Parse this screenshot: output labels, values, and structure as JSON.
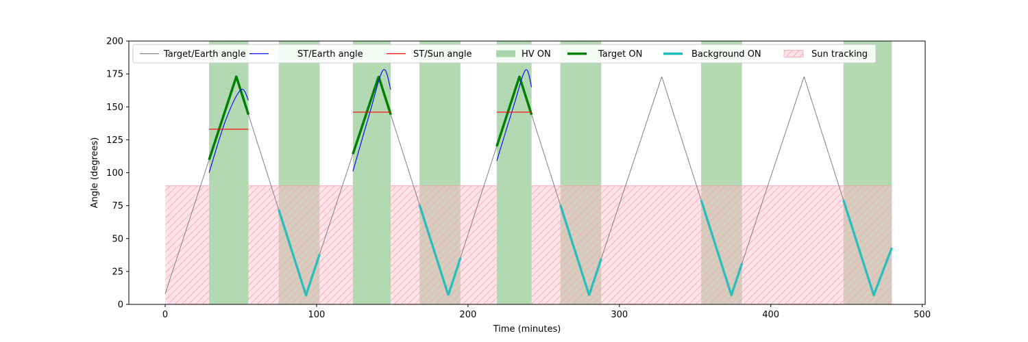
{
  "chart_data": {
    "type": "line",
    "xlabel": "Time (minutes)",
    "ylabel": "Angle (degrees)",
    "xlim": [
      -24,
      502
    ],
    "ylim": [
      0,
      200
    ],
    "x_ticks": [
      0,
      100,
      200,
      300,
      400,
      500
    ],
    "y_ticks": [
      0,
      25,
      50,
      75,
      100,
      125,
      150,
      175,
      200
    ],
    "grid": false,
    "legend_position": "top",
    "colors": {
      "target_earth": "#808080",
      "st_earth": "#0000ff",
      "st_sun": "#ff0000",
      "hv_on": "#008000",
      "target_on": "#008000",
      "background_on": "#17bfbf",
      "sun_tracking": "#ffc0cb"
    },
    "legend": [
      {
        "key": "target_earth",
        "label": "Target/Earth angle",
        "kind": "line"
      },
      {
        "key": "st_earth",
        "label": "ST/Earth angle",
        "kind": "line"
      },
      {
        "key": "st_sun",
        "label": "ST/Sun angle",
        "kind": "line"
      },
      {
        "key": "hv_on",
        "label": "HV ON",
        "kind": "patch"
      },
      {
        "key": "target_on",
        "label": "Target ON",
        "kind": "thick"
      },
      {
        "key": "background_on",
        "label": "Background ON",
        "kind": "thick"
      },
      {
        "key": "sun_tracking",
        "label": "Sun tracking",
        "kind": "hatch"
      }
    ],
    "target_earth_vertices": [
      {
        "t": 0,
        "a": 8
      },
      {
        "t": 47,
        "a": 173
      },
      {
        "t": 93,
        "a": 7
      },
      {
        "t": 141,
        "a": 173
      },
      {
        "t": 187,
        "a": 7
      },
      {
        "t": 234,
        "a": 173
      },
      {
        "t": 280,
        "a": 7
      },
      {
        "t": 328,
        "a": 173
      },
      {
        "t": 374,
        "a": 7
      },
      {
        "t": 422,
        "a": 173
      },
      {
        "t": 468,
        "a": 7
      },
      {
        "t": 480,
        "a": 43
      }
    ],
    "st_earth_segments": [
      {
        "points": [
          [
            29,
            100
          ],
          [
            40,
            140
          ],
          [
            50,
            163
          ],
          [
            55,
            155
          ]
        ]
      },
      {
        "points": [
          [
            124,
            101
          ],
          [
            135,
            145
          ],
          [
            144,
            178
          ],
          [
            149,
            163
          ]
        ]
      },
      {
        "points": [
          [
            219,
            109
          ],
          [
            230,
            150
          ],
          [
            238,
            178
          ],
          [
            242,
            165
          ]
        ]
      }
    ],
    "st_sun_segments": [
      {
        "t": [
          29,
          55
        ],
        "a": 133
      },
      {
        "t": [
          124,
          149
        ],
        "a": 146
      },
      {
        "t": [
          219,
          242
        ],
        "a": 146
      }
    ],
    "hv_on_intervals": [
      [
        29,
        55
      ],
      [
        75,
        102
      ],
      [
        124,
        149
      ],
      [
        168,
        195
      ],
      [
        219,
        242
      ],
      [
        261,
        288
      ],
      [
        354,
        381
      ],
      [
        448,
        480
      ]
    ],
    "target_on_intervals": [
      [
        29,
        55
      ],
      [
        124,
        149
      ],
      [
        219,
        242
      ]
    ],
    "background_on_intervals": [
      [
        75,
        102
      ],
      [
        168,
        195
      ],
      [
        261,
        288
      ],
      [
        354,
        381
      ],
      [
        448,
        480
      ]
    ],
    "sun_tracking": {
      "band": [
        0,
        90
      ],
      "intervals": [
        [
          0,
          29
        ],
        [
          55,
          124
        ],
        [
          149,
          219
        ],
        [
          242,
          480
        ]
      ]
    }
  }
}
